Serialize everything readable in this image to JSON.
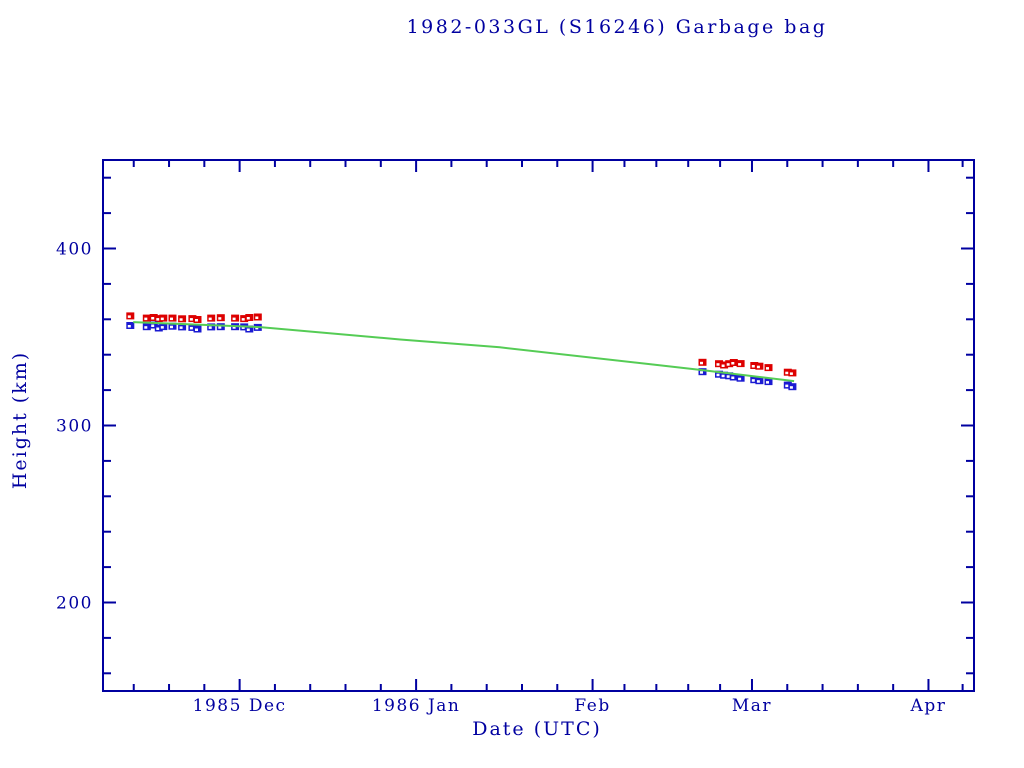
{
  "chart_data": {
    "type": "scatter",
    "title": "1982-033GL (S16246) Garbage bag",
    "xlabel": "Date (UTC)",
    "ylabel": "Height (km)",
    "grid": false,
    "legend": "none",
    "colors": {
      "axis": "#0000a0",
      "red_points": "#dd0000",
      "blue_points": "#1a1ad2",
      "green_fit_line": "#55cc55",
      "background": "#ffffff"
    },
    "x_axis": {
      "epoch_day0": "1985 Nov 7 (left edge, unlabeled)",
      "total_days": 153,
      "month_ticks": [
        {
          "label": "1985 Dec",
          "day": 24
        },
        {
          "label": "1986 Jan",
          "day": 55
        },
        {
          "label": "Feb",
          "day": 86
        },
        {
          "label": "Mar",
          "day": 114
        },
        {
          "label": "Apr",
          "day": 145
        }
      ],
      "virtual_next_boundary_day": 175,
      "minor_divisions_per_month": 5
    },
    "y_axis": {
      "min": 150,
      "max": 450,
      "major_ticks": [
        200,
        300,
        400
      ],
      "minor_step": 20
    },
    "series": [
      {
        "name": "red_points",
        "marker": "filled-square-with-white-center",
        "points_day_km": [
          [
            4.8,
            361.9
          ],
          [
            7.7,
            360.7
          ],
          [
            8.9,
            361.0
          ],
          [
            9.8,
            360.4
          ],
          [
            10.6,
            360.7
          ],
          [
            12.2,
            360.7
          ],
          [
            13.9,
            360.3
          ],
          [
            15.7,
            360.4
          ],
          [
            16.6,
            359.9
          ],
          [
            19.0,
            360.7
          ],
          [
            20.7,
            360.9
          ],
          [
            23.2,
            360.7
          ],
          [
            24.8,
            360.4
          ],
          [
            25.7,
            361.0
          ],
          [
            27.2,
            361.3
          ],
          [
            105.3,
            335.7
          ],
          [
            108.2,
            334.9
          ],
          [
            109.1,
            334.2
          ],
          [
            110.0,
            334.9
          ],
          [
            110.8,
            335.6
          ],
          [
            112.0,
            335.0
          ],
          [
            114.4,
            333.9
          ],
          [
            115.3,
            333.5
          ],
          [
            116.9,
            332.7
          ],
          [
            120.3,
            330.1
          ],
          [
            121.1,
            329.7
          ]
        ]
      },
      {
        "name": "blue_points",
        "marker": "filled-square-with-white-center",
        "points_day_km": [
          [
            4.8,
            356.5
          ],
          [
            7.7,
            355.8
          ],
          [
            8.9,
            356.8
          ],
          [
            9.8,
            355.1
          ],
          [
            10.6,
            355.9
          ],
          [
            12.2,
            356.1
          ],
          [
            13.9,
            355.7
          ],
          [
            15.7,
            355.4
          ],
          [
            16.6,
            354.5
          ],
          [
            19.0,
            355.7
          ],
          [
            20.7,
            355.8
          ],
          [
            23.2,
            355.8
          ],
          [
            24.8,
            355.7
          ],
          [
            25.7,
            354.5
          ],
          [
            27.2,
            355.4
          ],
          [
            105.3,
            330.4
          ],
          [
            108.2,
            329.0
          ],
          [
            109.1,
            328.4
          ],
          [
            110.0,
            328.1
          ],
          [
            110.8,
            327.4
          ],
          [
            112.0,
            326.7
          ],
          [
            114.4,
            325.9
          ],
          [
            115.3,
            325.3
          ],
          [
            116.9,
            324.8
          ],
          [
            120.3,
            322.8
          ],
          [
            121.1,
            321.9
          ]
        ]
      },
      {
        "name": "green_fit_line",
        "marker": "line",
        "points_day_km": [
          [
            5.3,
            358.4
          ],
          [
            27.6,
            355.6
          ],
          [
            52.2,
            348.6
          ],
          [
            69.7,
            344.2
          ],
          [
            96.0,
            334.7
          ],
          [
            104.9,
            331.4
          ],
          [
            121.4,
            325.1
          ]
        ]
      }
    ]
  }
}
